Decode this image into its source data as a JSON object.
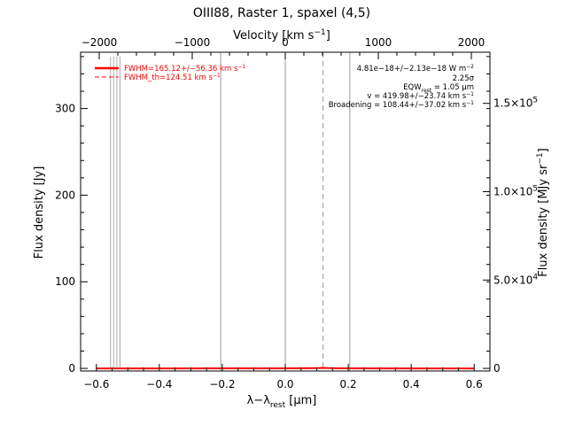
{
  "chart_data": {
    "type": "line",
    "title": "OIII88, Raster 1, spaxel (4,5)",
    "xlabel": "λ−λ",
    "xlabel_sub": "rest",
    "xlabel_unit": " [μm]",
    "ylabel": "Flux density [Jy]",
    "top_xlabel": "Velocity [km s",
    "top_xlabel_sup": "−1",
    "top_xlabel_end": "]",
    "right_ylabel": "Flux density [MJy sr",
    "right_ylabel_sup": "−1",
    "right_ylabel_end": "]",
    "xlim": [
      -0.65,
      0.65
    ],
    "ylim": [
      -3,
      365
    ],
    "top_xlim": [
      -2200,
      2200
    ],
    "x_ticks": [
      -0.6,
      -0.4,
      -0.2,
      0.0,
      0.2,
      0.4,
      0.6
    ],
    "x_tick_labels": [
      "−0.6",
      "−0.4",
      "−0.2",
      "0.0",
      "0.2",
      "0.4",
      "0.6"
    ],
    "y_ticks": [
      0,
      100,
      200,
      300
    ],
    "y_tick_labels": [
      "0",
      "100",
      "200",
      "300"
    ],
    "top_ticks": [
      -2000,
      -1000,
      0,
      1000,
      2000
    ],
    "top_tick_labels": [
      "−2000",
      "−1000",
      "0",
      "1000",
      "2000"
    ],
    "right_ticks": [
      {
        "y": 0,
        "label": "0"
      },
      {
        "y": 102,
        "mant": "5.0×10",
        "exp": "4"
      },
      {
        "y": 204,
        "mant": "1.0×10",
        "exp": "5"
      },
      {
        "y": 306,
        "mant": "1.5×10",
        "exp": "5"
      }
    ],
    "vlines": [
      {
        "x": -0.205,
        "style": "solid",
        "color": "#999999"
      },
      {
        "x": 0.0,
        "style": "solid",
        "color": "#999999"
      },
      {
        "x": 0.205,
        "style": "solid",
        "color": "#999999"
      },
      {
        "x": 0.12,
        "style": "dashed",
        "color": "#999999"
      }
    ],
    "spike_x": [
      -0.555,
      -0.545,
      -0.535,
      -0.525
    ],
    "spike_top": 360,
    "series": [
      {
        "color": "#aaaaaa",
        "x": [
          -0.6,
          -0.5,
          -0.4,
          -0.3,
          -0.2,
          -0.1,
          0.0,
          0.1,
          0.2,
          0.3,
          0.4,
          0.5,
          0.6
        ],
        "y": [
          0.3,
          0.2,
          0.4,
          0.1,
          0.3,
          0.2,
          0.5,
          0.6,
          0.4,
          0.2,
          0.3,
          0.1,
          0.2
        ]
      },
      {
        "color": "#ff0000",
        "x": [
          -0.6,
          -0.4,
          -0.2,
          0.0,
          0.1,
          0.12,
          0.14,
          0.2,
          0.4,
          0.6
        ],
        "y": [
          0.0,
          0.0,
          0.05,
          0.1,
          0.4,
          0.6,
          0.4,
          0.1,
          0.0,
          0.0
        ]
      }
    ],
    "legend": [
      {
        "text": "FWHM=165.12+/−56.36 km s",
        "sup": "−1",
        "color": "#ff0000",
        "style": "solid"
      },
      {
        "text": "FWHM_th=124.51 km s",
        "sup": "−1",
        "color": "#ff0000",
        "style": "dashed"
      }
    ],
    "annotations": {
      "line1": "4.81e−18+/−2.13e−18 W m",
      "line1_sup": "−2",
      "line2": "2.25σ",
      "line3": "EQW",
      "line3_sub": "rest",
      "line3_end": " = 1.05 μm",
      "line4": "v = 419.98+/−23.74 km s",
      "line4_sup": "−1",
      "line5": "Broadening = 108.44+/−37.02 km s",
      "line5_sup": "−1"
    },
    "colors": {
      "axes": "#000000",
      "fit": "#ff0000",
      "data": "#aaaaaa",
      "marker": "#999999"
    }
  }
}
